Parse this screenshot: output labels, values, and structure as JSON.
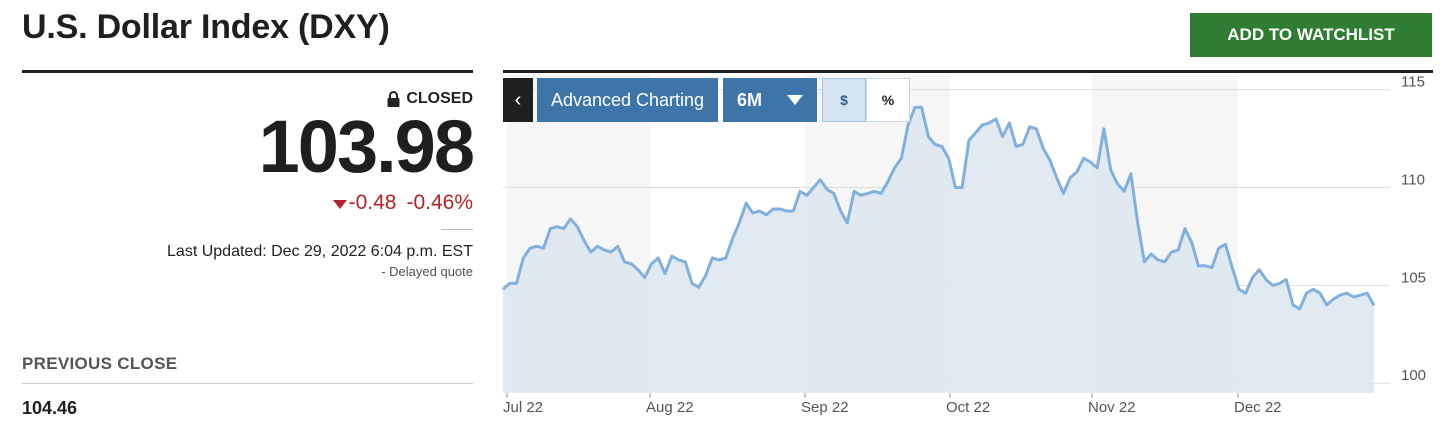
{
  "header": {
    "title": "U.S. Dollar Index (DXY)",
    "watchlist_label": "ADD TO WATCHLIST"
  },
  "quote": {
    "status": "CLOSED",
    "price": "103.98",
    "change": "-0.48",
    "change_pct": "-0.46%",
    "last_updated": "Last Updated: Dec 29, 2022 6:04 p.m. EST",
    "delayed": "-  Delayed quote",
    "previous_close_label": "PREVIOUS CLOSE",
    "previous_close_value": "104.46"
  },
  "toolbar": {
    "back_glyph": "‹",
    "advanced_label": "Advanced Charting",
    "range_value": "6M",
    "dollar_label": "$",
    "percent_label": "%"
  },
  "colors": {
    "accent_green": "#2f7d32",
    "accent_blue": "#3d75a8",
    "negative_red": "#b5232a",
    "series_line": "#82b0dd",
    "series_fill": "#dfe8f0"
  },
  "chart_data": {
    "type": "area",
    "xlabel": "",
    "ylabel": "",
    "ylim": [
      99.5,
      115.8
    ],
    "y_ticks": [
      100,
      105,
      110,
      115
    ],
    "x_ticks": [
      "Jul 22",
      "Aug 22",
      "Sep 22",
      "Oct 22",
      "Nov 22",
      "Dec 22"
    ],
    "grid": "horizontal",
    "series": [
      {
        "values": [
          104.8,
          105.1,
          105.1,
          106.4,
          106.9,
          107.0,
          106.9,
          107.9,
          108.0,
          107.9,
          108.4,
          108.0,
          107.3,
          106.7,
          107.0,
          106.8,
          106.7,
          107.0,
          106.2,
          106.1,
          105.8,
          105.4,
          106.1,
          106.4,
          105.6,
          106.5,
          106.3,
          106.2,
          105.1,
          104.9,
          105.5,
          106.4,
          106.3,
          106.4,
          107.4,
          108.2,
          109.2,
          108.7,
          108.8,
          108.6,
          108.9,
          108.9,
          108.8,
          108.8,
          109.8,
          109.6,
          110.0,
          110.4,
          109.9,
          109.7,
          108.8,
          108.2,
          109.8,
          109.6,
          109.7,
          109.8,
          109.7,
          110.3,
          111.0,
          111.5,
          113.2,
          114.1,
          114.1,
          112.6,
          112.2,
          112.1,
          111.5,
          110.0,
          110.0,
          112.4,
          112.8,
          113.2,
          113.3,
          113.5,
          112.6,
          113.3,
          112.1,
          112.2,
          113.1,
          113.0,
          112.0,
          111.4,
          110.5,
          109.7,
          110.5,
          110.8,
          111.5,
          111.3,
          111.0,
          113.0,
          110.9,
          110.2,
          109.8,
          110.7,
          108.2,
          106.2,
          106.6,
          106.3,
          106.2,
          106.7,
          106.8,
          107.9,
          107.2,
          106.0,
          106.0,
          105.9,
          106.9,
          107.1,
          105.9,
          104.8,
          104.6,
          105.4,
          105.8,
          105.3,
          105.0,
          105.1,
          105.3,
          104.0,
          103.8,
          104.6,
          104.8,
          104.6,
          104.0,
          104.3,
          104.5,
          104.6,
          104.4,
          104.5,
          104.6,
          103.98
        ]
      }
    ]
  }
}
